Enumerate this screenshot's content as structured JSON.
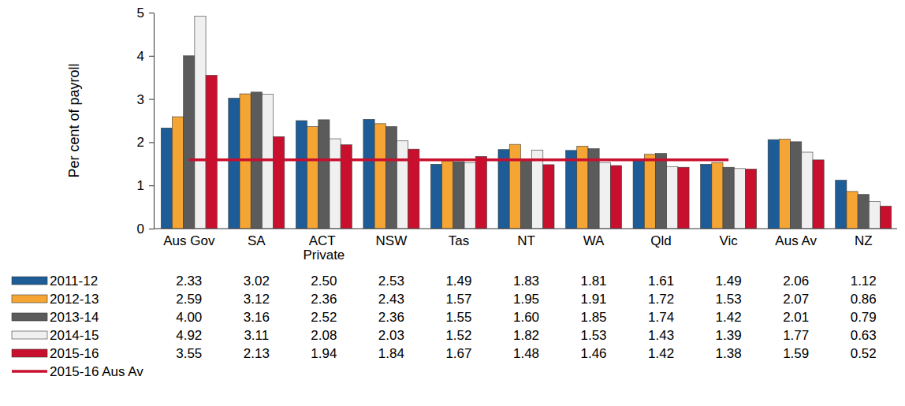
{
  "chart_data": {
    "type": "bar",
    "y_label": "Per cent of payroll",
    "categories": [
      "Aus Gov",
      "SA",
      "ACT Private",
      "NSW",
      "Tas",
      "NT",
      "WA",
      "Qld",
      "Vic",
      "Aus Av",
      "NZ"
    ],
    "ylim": [
      0,
      5
    ],
    "yticks": [
      0,
      1,
      2,
      3,
      4,
      5
    ],
    "grid": false,
    "legend": "bottom",
    "series": [
      {
        "name": "2011-12",
        "color": "#1d5c96",
        "values": [
          2.33,
          3.02,
          2.5,
          2.53,
          1.49,
          1.83,
          1.81,
          1.61,
          1.49,
          2.06,
          1.12
        ],
        "value_labels": [
          "2.33",
          "3.02",
          "2.50",
          "2.53",
          "1.49",
          "1.83",
          "1.81",
          "1.61",
          "1.49",
          "2.06",
          "1.12"
        ]
      },
      {
        "name": "2012-13",
        "color": "#f5a533",
        "values": [
          2.59,
          3.12,
          2.36,
          2.43,
          1.57,
          1.95,
          1.91,
          1.72,
          1.53,
          2.07,
          0.86
        ],
        "value_labels": [
          "2.59",
          "3.12",
          "2.36",
          "2.43",
          "1.57",
          "1.95",
          "1.91",
          "1.72",
          "1.53",
          "2.07",
          "0.86"
        ]
      },
      {
        "name": "2013-14",
        "color": "#5b5b5b",
        "values": [
          4.0,
          3.16,
          2.52,
          2.36,
          1.55,
          1.6,
          1.85,
          1.74,
          1.42,
          2.01,
          0.79
        ],
        "value_labels": [
          "4.00",
          "3.16",
          "2.52",
          "2.36",
          "1.55",
          "1.60",
          "1.85",
          "1.74",
          "1.42",
          "2.01",
          "0.79"
        ]
      },
      {
        "name": "2014-15",
        "color": "#f0f0f0",
        "values": [
          4.92,
          3.11,
          2.08,
          2.03,
          1.52,
          1.82,
          1.53,
          1.43,
          1.39,
          1.77,
          0.63
        ],
        "value_labels": [
          "4.92",
          "3.11",
          "2.08",
          "2.03",
          "1.52",
          "1.82",
          "1.53",
          "1.43",
          "1.39",
          "1.77",
          "0.63"
        ]
      },
      {
        "name": "2015-16",
        "color": "#c8102e",
        "values": [
          3.55,
          2.13,
          1.94,
          1.84,
          1.67,
          1.48,
          1.46,
          1.42,
          1.38,
          1.59,
          0.52
        ],
        "value_labels": [
          "3.55",
          "2.13",
          "1.94",
          "1.84",
          "1.67",
          "1.48",
          "1.46",
          "1.42",
          "1.38",
          "1.59",
          "0.52"
        ]
      },
      {
        "name": "2015-16 Aus Av",
        "type": "line",
        "color": "#c8102e",
        "values": [
          1.59,
          1.59,
          1.59,
          1.59,
          1.59,
          1.59,
          1.59,
          1.59,
          1.59,
          null,
          null
        ]
      }
    ]
  }
}
